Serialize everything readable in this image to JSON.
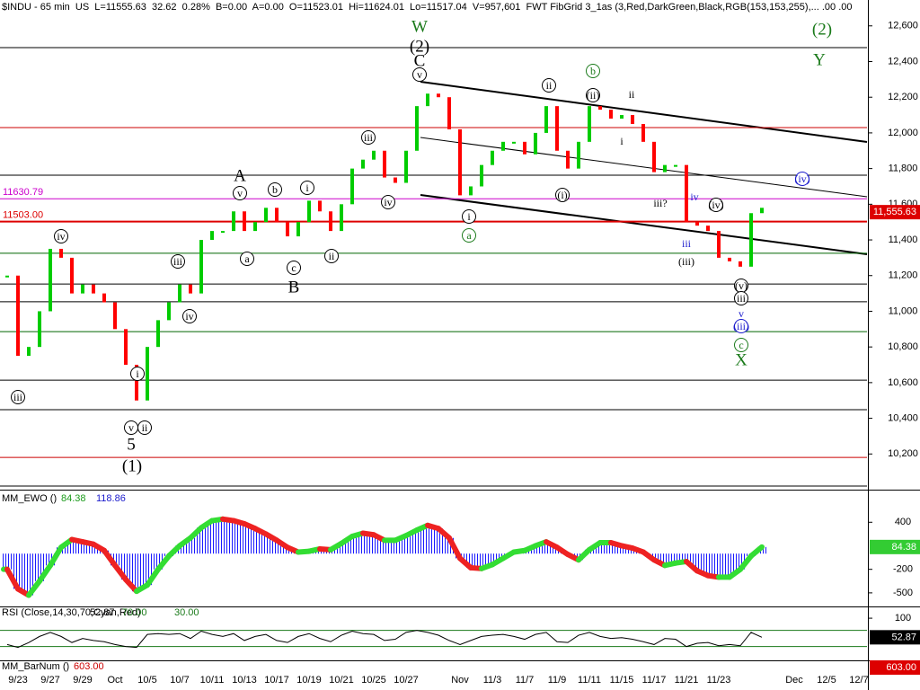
{
  "chart_data": [
    {
      "type": "candlestick",
      "header": "$INDU - 65 min  US  L=11555.63  32.62  0.28%  B=0.00  A=0.00  O=11523.01  Hi=11624.01  Lo=11517.04  V=957,601  FWT FibGrid 3_1as (3,Red,DarkGreen,Black,RGB(153,153,255),... .00 .00",
      "categories": [
        null,
        "9/23",
        null,
        null,
        "9/27",
        null,
        null,
        "9/29",
        null,
        null,
        "Oct",
        null,
        null,
        "10/5",
        null,
        null,
        "10/7",
        null,
        null,
        "10/11",
        null,
        null,
        "10/13",
        null,
        null,
        "10/17",
        null,
        null,
        "10/19",
        null,
        null,
        "10/21",
        null,
        null,
        "10/25",
        null,
        null,
        "10/27",
        null,
        null,
        null,
        null,
        "Nov",
        null,
        null,
        "11/3",
        null,
        null,
        "11/7",
        null,
        null,
        "11/9",
        null,
        null,
        "11/11",
        null,
        null,
        "11/15",
        null,
        null,
        "11/17",
        null,
        null,
        "11/21",
        null,
        null,
        "11/23",
        null,
        null,
        null,
        null,
        null,
        null,
        "Dec",
        null,
        null,
        "12/5",
        null,
        null,
        "12/7"
      ],
      "values": [
        11200,
        10750,
        10800,
        11000,
        11350,
        11300,
        11100,
        11150,
        11100,
        11050,
        10900,
        10700,
        10500,
        10800,
        10950,
        11050,
        11150,
        11100,
        11400,
        11450,
        11450,
        11560,
        11450,
        11500,
        11580,
        11500,
        11420,
        11500,
        11620,
        11560,
        11450,
        11600,
        11800,
        11850,
        11900,
        11750,
        11720,
        11900,
        12150,
        12220,
        12200,
        12020,
        11650,
        11700,
        11820,
        11900,
        11950,
        11950,
        11880,
        12000,
        12150,
        11900,
        11800,
        11950,
        12150,
        12130,
        12080,
        12100,
        12050,
        11950,
        11780,
        11820,
        11820,
        11500,
        11480,
        11450,
        11300,
        11280,
        11250,
        11550,
        11580,
        null,
        null,
        null,
        null,
        null,
        null,
        null,
        null,
        null
      ],
      "up_color": "#00cc00",
      "down_color": "#ff0000",
      "ylim": [
        10000,
        12745
      ],
      "yticks": [
        {
          "value": 10200,
          "label": "10,200"
        },
        {
          "value": 10400,
          "label": "10,400"
        },
        {
          "value": 10600,
          "label": "10,600"
        },
        {
          "value": 10800,
          "label": "10,800"
        },
        {
          "value": 11000,
          "label": "11,000"
        },
        {
          "value": 11200,
          "label": "11,200"
        },
        {
          "value": 11400,
          "label": "11,400"
        },
        {
          "value": 11600,
          "label": "11,600"
        },
        {
          "value": 11800,
          "label": "11,800"
        },
        {
          "value": 12000,
          "label": "12,000"
        },
        {
          "value": 12200,
          "label": "12,200"
        },
        {
          "value": 12400,
          "label": "12,400"
        },
        {
          "value": 12600,
          "label": "12,600"
        }
      ],
      "levels": [
        {
          "value": 12478,
          "color": "#000000"
        },
        {
          "value": 12030,
          "color": "#cc0000"
        },
        {
          "value": 11763,
          "color": "#000000"
        },
        {
          "value": 11630.79,
          "label": "11630.79",
          "color": "#cc00cc"
        },
        {
          "value": 11503,
          "label": "11503.00",
          "color": "#dd0000"
        },
        {
          "value": 11325,
          "color": "#006600"
        },
        {
          "value": 11153,
          "color": "#000000"
        },
        {
          "value": 11053,
          "color": "#000000"
        },
        {
          "value": 10886,
          "color": "#006600"
        },
        {
          "value": 10614,
          "color": "#000000"
        },
        {
          "value": 10448,
          "color": "#000000"
        },
        {
          "value": 10181,
          "color": "#cc0000"
        },
        {
          "value": 10020,
          "color": "#000000"
        }
      ],
      "last_price": {
        "value": 11555.63,
        "label": "11,555.63"
      },
      "annotations": [
        "W",
        "(2)",
        "C",
        "v",
        "ii",
        "b",
        "(ii)",
        "ii",
        "i",
        "iii",
        "iv",
        "(i)",
        "i",
        "a",
        "iii?",
        "iv",
        "(iv)",
        "(iv)",
        "iii",
        "(iii)",
        "(v)",
        "iii",
        "v",
        "(iii)",
        "c",
        "X",
        "(2)",
        "Y",
        "A",
        "v",
        "b",
        "i",
        "a",
        "c",
        "B",
        "ii",
        "iv",
        "iii",
        "iv",
        "i",
        "v",
        "ii",
        "5",
        "(1)",
        "iii"
      ]
    },
    {
      "type": "bar",
      "title": "MM_EWO ()",
      "signal": 118.86,
      "color": "#1a1aff",
      "values": [
        -200,
        -450,
        -530,
        -350,
        -150,
        80,
        180,
        150,
        120,
        40,
        -150,
        -330,
        -480,
        -400,
        -200,
        -30,
        100,
        200,
        330,
        420,
        440,
        420,
        380,
        320,
        250,
        170,
        80,
        20,
        30,
        60,
        50,
        130,
        220,
        260,
        240,
        170,
        170,
        230,
        300,
        360,
        320,
        200,
        -60,
        -180,
        -190,
        -140,
        -60,
        20,
        40,
        100,
        150,
        80,
        -10,
        -80,
        50,
        140,
        140,
        100,
        70,
        20,
        -80,
        -150,
        -120,
        -100,
        -220,
        -280,
        -300,
        -300,
        -200,
        -30,
        84.38,
        null,
        null,
        null,
        null,
        null,
        null,
        null,
        null,
        null
      ],
      "ylim": [
        -673,
        781
      ],
      "yticks": [
        400,
        -200,
        -500
      ]
    },
    {
      "type": "line",
      "title": "RSI (Close,14,30,70,Cyan,Red)",
      "color": "#000000",
      "values": [
        35,
        28,
        40,
        55,
        65,
        55,
        40,
        50,
        45,
        42,
        35,
        30,
        28,
        60,
        62,
        60,
        62,
        50,
        68,
        60,
        55,
        62,
        45,
        55,
        60,
        45,
        40,
        55,
        62,
        50,
        42,
        58,
        68,
        62,
        60,
        45,
        48,
        65,
        70,
        65,
        58,
        45,
        35,
        45,
        55,
        58,
        60,
        55,
        48,
        60,
        65,
        42,
        40,
        58,
        65,
        55,
        50,
        52,
        48,
        42,
        35,
        50,
        48,
        30,
        38,
        40,
        32,
        35,
        32,
        65,
        52.87,
        null,
        null,
        null,
        null,
        null,
        null,
        null,
        null,
        null
      ],
      "levels": [
        {
          "value": 70,
          "label": "70.00"
        },
        {
          "value": 30,
          "label": "30.00"
        }
      ],
      "ylim": [
        -4,
        129
      ],
      "yticks": [
        100
      ]
    },
    {
      "type": "indicator",
      "title": "MM_BarNum ()",
      "value": 603,
      "value_label": "603.00"
    }
  ]
}
